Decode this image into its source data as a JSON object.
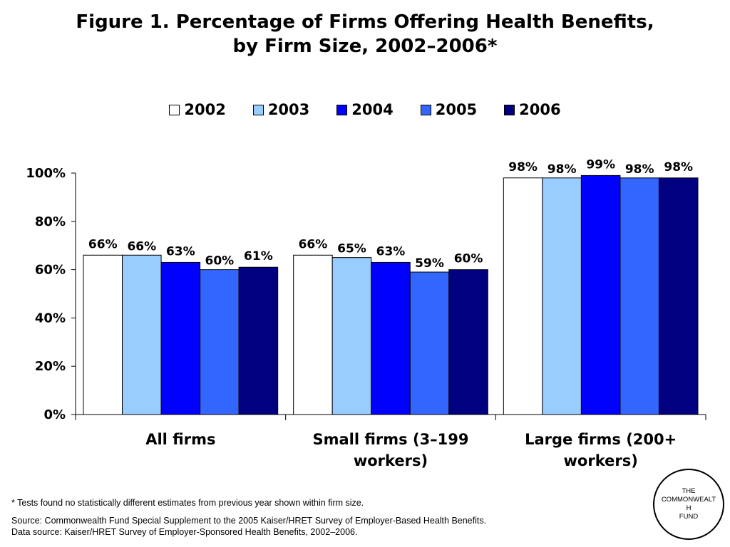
{
  "title_line1": "Figure 1. Percentage of Firms Offering Health Benefits,",
  "title_line2": "by Firm Size, 2002–2006*",
  "chart_data": {
    "type": "bar",
    "categories": [
      [
        "All firms"
      ],
      [
        "Small firms (3–199",
        "workers)"
      ],
      [
        "Large firms (200+",
        "workers)"
      ]
    ],
    "series": [
      {
        "name": "2002",
        "color": "#ffffff",
        "values": [
          66,
          66,
          98
        ],
        "labels": [
          "66%",
          "66%",
          "98%"
        ]
      },
      {
        "name": "2003",
        "color": "#99ccff",
        "values": [
          66,
          65,
          98
        ],
        "labels": [
          "66%",
          "65%",
          "98%"
        ]
      },
      {
        "name": "2004",
        "color": "#0000ff",
        "values": [
          63,
          63,
          99
        ],
        "labels": [
          "63%",
          "63%",
          "99%"
        ]
      },
      {
        "name": "2005",
        "color": "#3366ff",
        "values": [
          60,
          59,
          98
        ],
        "labels": [
          "60%",
          "59%",
          "98%"
        ]
      },
      {
        "name": "2006",
        "color": "#000080",
        "values": [
          61,
          60,
          98
        ],
        "labels": [
          "61%",
          "60%",
          "98%"
        ]
      }
    ],
    "ylim": [
      0,
      100
    ],
    "yticks": [
      0,
      20,
      40,
      60,
      80,
      100
    ],
    "ytick_labels": [
      "0%",
      "20%",
      "40%",
      "60%",
      "80%",
      "100%"
    ],
    "legend_position": "top",
    "grid": false,
    "xlabel": "",
    "ylabel": ""
  },
  "footnote": "* Tests found no statistically different estimates from previous year shown within firm size.",
  "source_line1": "Source: Commonwealth Fund Special Supplement to the 2005 Kaiser/HRET Survey of Employer-Based Health Benefits.",
  "source_line2": "Data source: Kaiser/HRET Survey of Employer-Sponsored Health Benefits, 2002–2006.",
  "logo": {
    "line1": "THE",
    "line2": "COMMONWEALT",
    "line3": "H",
    "line4": "FUND"
  }
}
